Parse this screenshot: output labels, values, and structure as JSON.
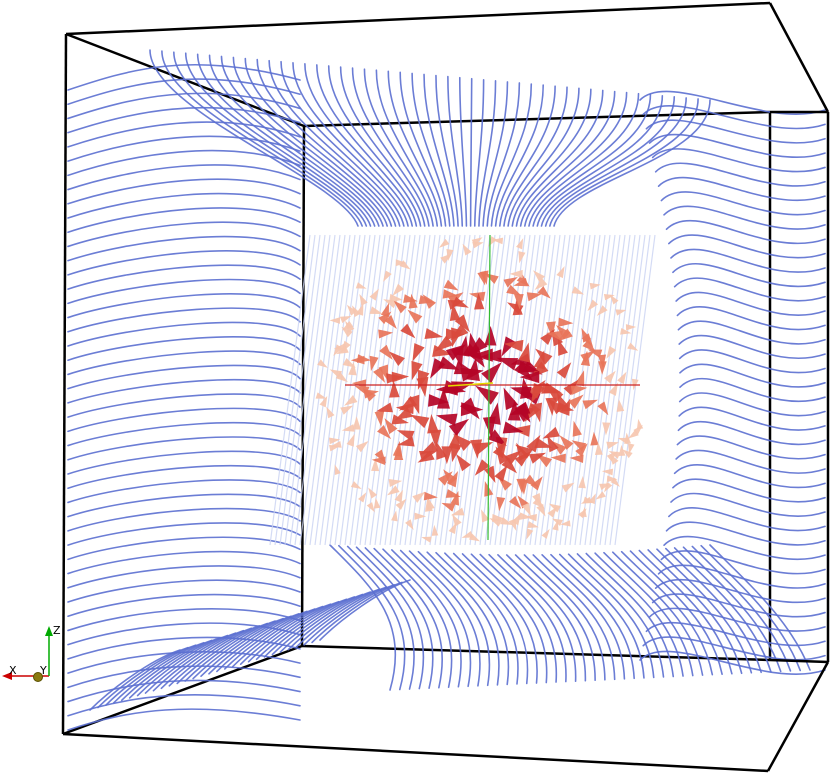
{
  "scene": {
    "background": "#ffffff",
    "outline_color": "#000000",
    "streamline_color": "#5b6fd0",
    "core_color": "#b40426",
    "mid_color": "#e8755a",
    "pale_color": "#f6c7b0"
  },
  "orientation_axes": {
    "x_label": "X",
    "y_label": "Y",
    "z_label": "Z",
    "x_color": "#cc0000",
    "y_color": "#b8a800",
    "z_color": "#00aa00"
  }
}
